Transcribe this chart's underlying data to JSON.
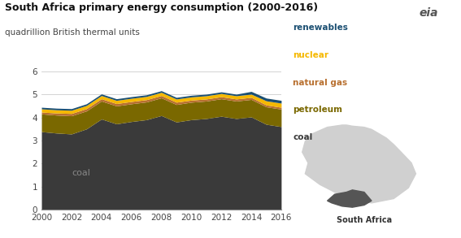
{
  "title": "South Africa primary energy consumption (2000-2016)",
  "subtitle": "quadrillion British thermal units",
  "years": [
    2000,
    2001,
    2002,
    2003,
    2004,
    2005,
    2006,
    2007,
    2008,
    2009,
    2010,
    2011,
    2012,
    2013,
    2014,
    2015,
    2016
  ],
  "coal": [
    3.38,
    3.32,
    3.28,
    3.5,
    3.93,
    3.72,
    3.82,
    3.9,
    4.08,
    3.8,
    3.9,
    3.95,
    4.05,
    3.95,
    4.02,
    3.7,
    3.6
  ],
  "petroleum": [
    0.77,
    0.78,
    0.79,
    0.78,
    0.78,
    0.78,
    0.77,
    0.77,
    0.77,
    0.76,
    0.76,
    0.76,
    0.76,
    0.76,
    0.76,
    0.76,
    0.76
  ],
  "natural_gas": [
    0.08,
    0.09,
    0.1,
    0.1,
    0.1,
    0.1,
    0.1,
    0.1,
    0.1,
    0.1,
    0.09,
    0.09,
    0.09,
    0.09,
    0.09,
    0.08,
    0.08
  ],
  "nuclear": [
    0.14,
    0.14,
    0.14,
    0.14,
    0.14,
    0.14,
    0.14,
    0.14,
    0.14,
    0.14,
    0.14,
    0.14,
    0.14,
    0.14,
    0.14,
    0.18,
    0.18
  ],
  "renewables": [
    0.07,
    0.07,
    0.07,
    0.07,
    0.07,
    0.07,
    0.07,
    0.07,
    0.07,
    0.07,
    0.07,
    0.07,
    0.07,
    0.07,
    0.12,
    0.12,
    0.12
  ],
  "coal_color": "#3a3a3a",
  "petroleum_color": "#7a6800",
  "natural_gas_color": "#b87030",
  "nuclear_color": "#f5b800",
  "renewables_color": "#1b4f72",
  "ylim": [
    0,
    6
  ],
  "yticks": [
    0,
    1,
    2,
    3,
    4,
    5,
    6
  ],
  "background_color": "#ffffff",
  "legend_labels": [
    "renewables",
    "nuclear",
    "natural gas",
    "petroleum",
    "coal"
  ],
  "legend_text_colors": [
    "#1b4f72",
    "#f5b800",
    "#b87030",
    "#7a6800",
    "#3a3a3a"
  ],
  "xticks": [
    2000,
    2002,
    2004,
    2006,
    2008,
    2010,
    2012,
    2014,
    2016
  ]
}
